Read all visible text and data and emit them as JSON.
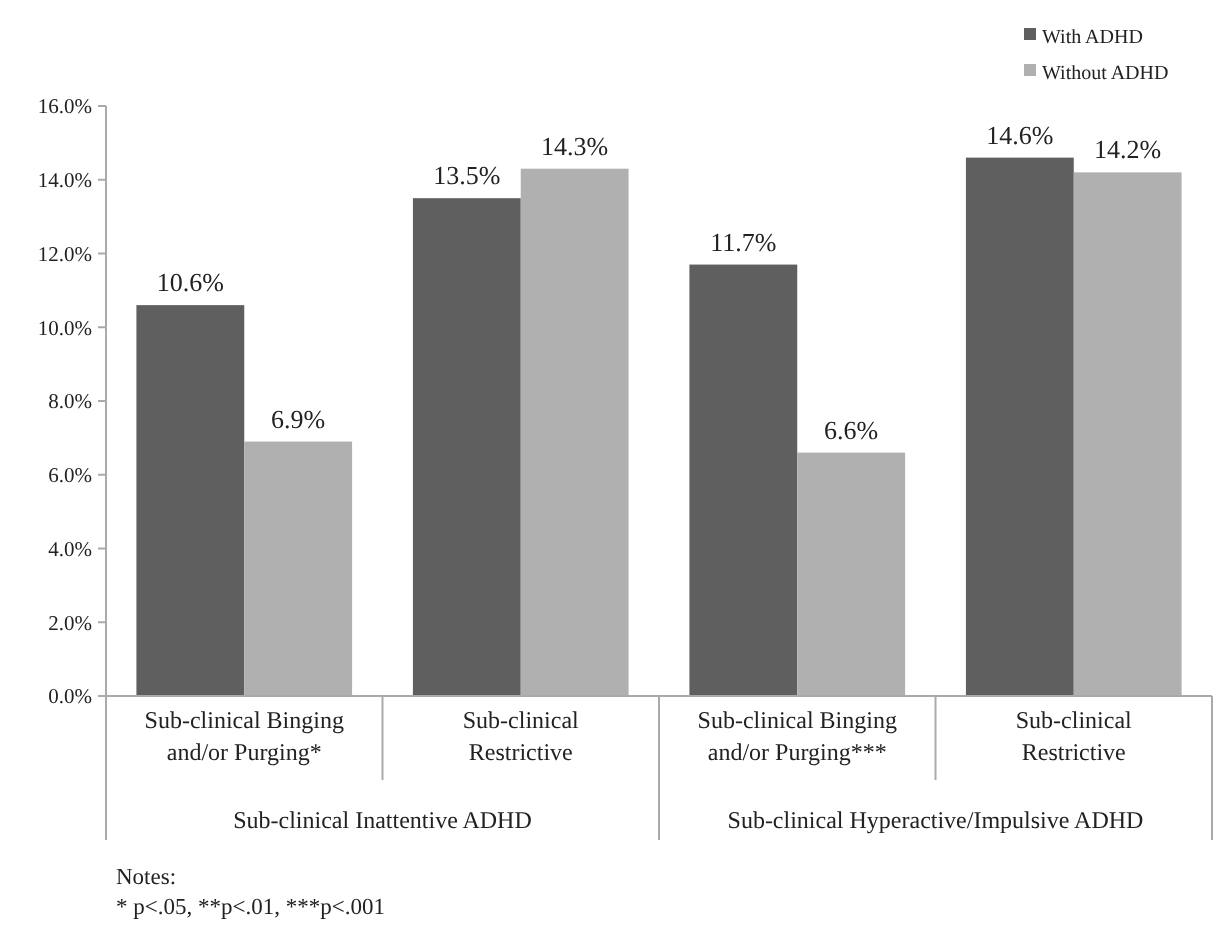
{
  "chart_data": {
    "type": "bar",
    "categories": [
      "Sub-clinical Binging\nand/or Purging*",
      "Sub-clinical\nRestrictive",
      "Sub-clinical Binging\nand/or Purging***",
      "Sub-clinical\nRestrictive"
    ],
    "series": [
      {
        "name": "With ADHD",
        "color": "#5f5f5f",
        "values": [
          10.6,
          13.5,
          11.7,
          14.6
        ],
        "value_labels": [
          "10.6%",
          "13.5%",
          "11.7%",
          "14.6%"
        ]
      },
      {
        "name": "Without ADHD",
        "color": "#b0b0b0",
        "values": [
          6.9,
          14.3,
          6.6,
          14.2
        ],
        "value_labels": [
          "6.9%",
          "14.3%",
          "6.6%",
          "14.2%"
        ]
      }
    ],
    "ylim": [
      0,
      16
    ],
    "yticks": [
      {
        "value": 0,
        "label": "0.0%"
      },
      {
        "value": 2,
        "label": "2.0%"
      },
      {
        "value": 4,
        "label": "4.0%"
      },
      {
        "value": 6,
        "label": "6.0%"
      },
      {
        "value": 8,
        "label": "8.0%"
      },
      {
        "value": 10,
        "label": "10.0%"
      },
      {
        "value": 12,
        "label": "12.0%"
      },
      {
        "value": 14,
        "label": "14.0%"
      },
      {
        "value": 16,
        "label": "16.0%"
      }
    ],
    "legend": "top right",
    "annotations": [
      "Sub-clinical Inattentive ADHD",
      "Sub-clinical Hyperactive/Impulsive ADHD",
      "Notes:",
      "* p<.05, **p<.01, ***p<.001"
    ]
  }
}
